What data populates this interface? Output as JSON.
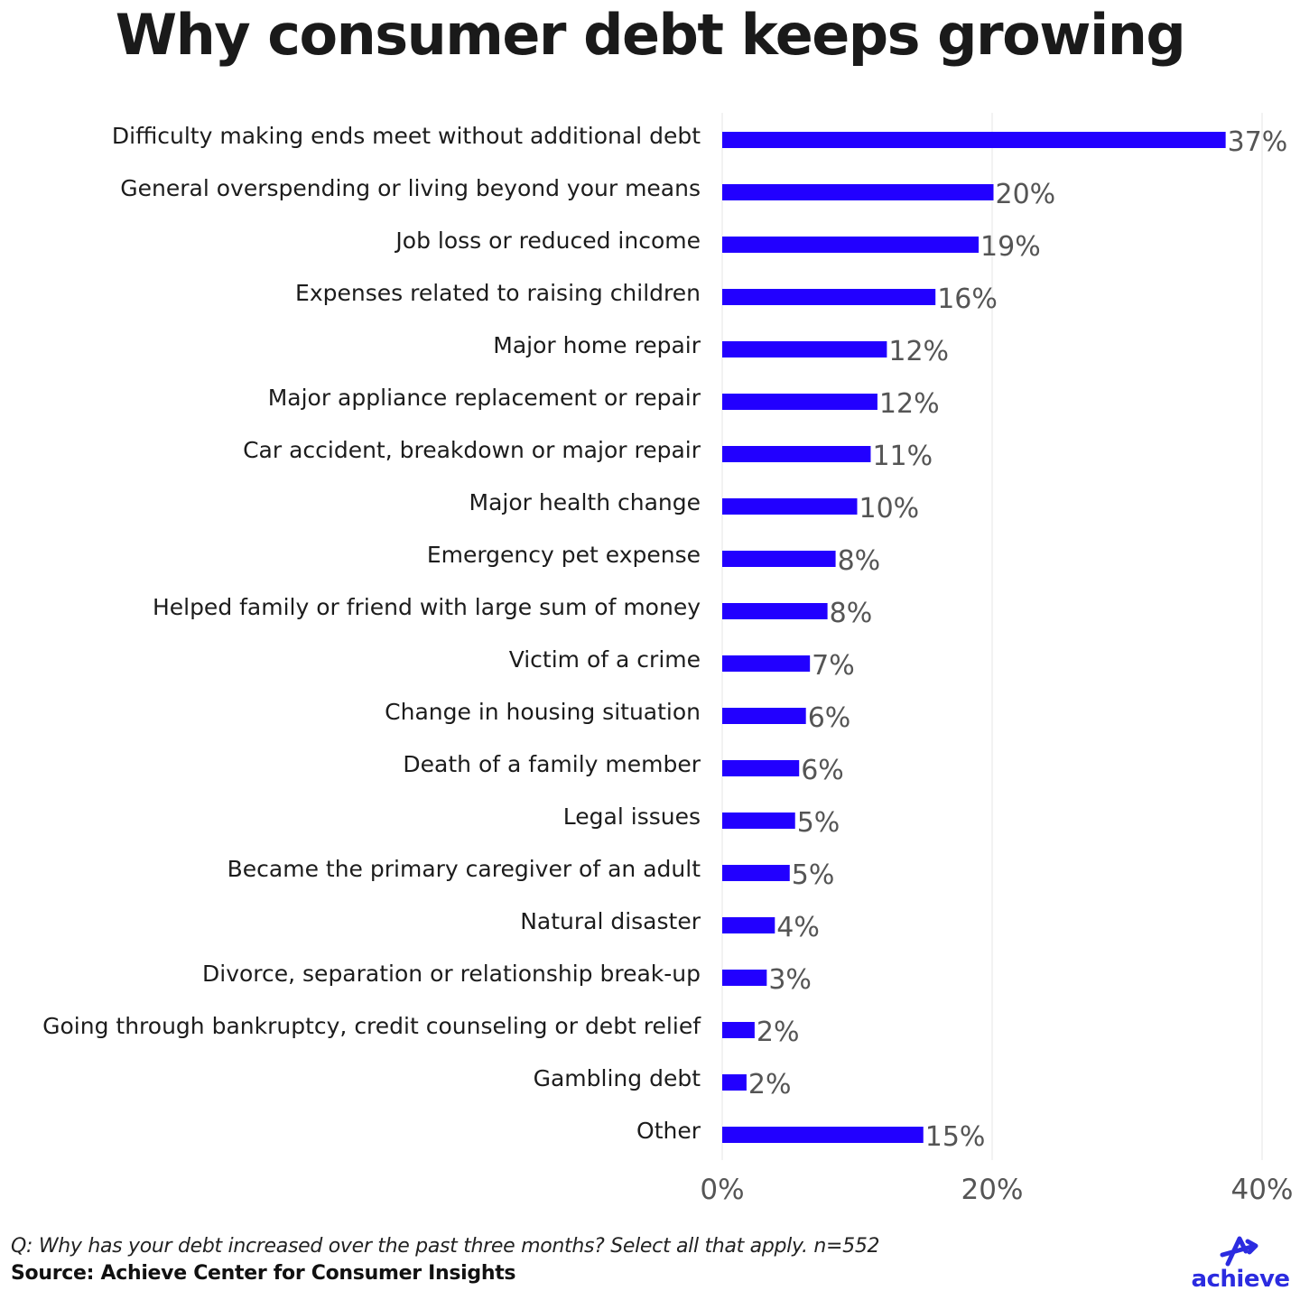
{
  "title": "Why consumer debt keeps growing",
  "chart_data": {
    "type": "bar",
    "orientation": "horizontal",
    "categories": [
      "Difficulty making ends meet without additional debt",
      "General overspending or living beyond your means",
      "Job loss or reduced income",
      "Expenses related to raising children",
      "Major home repair",
      "Major appliance replacement or repair",
      "Car accident, breakdown or major repair",
      "Major health change",
      "Emergency pet expense",
      "Helped family or friend with large sum of money",
      "Victim of a crime",
      "Change in housing situation",
      "Death of a family member",
      "Legal issues",
      "Became the primary caregiver of an adult",
      "Natural disaster",
      "Divorce, separation or relationship break-up",
      "Going through bankruptcy, credit counseling or debt relief",
      "Gambling debt",
      "Other"
    ],
    "values": [
      37.3,
      20.1,
      19.0,
      15.8,
      12.2,
      11.5,
      11.0,
      10.0,
      8.4,
      7.8,
      6.5,
      6.2,
      5.7,
      5.4,
      5.0,
      3.9,
      3.3,
      2.4,
      1.8,
      14.9
    ],
    "value_labels": [
      "37%",
      "20%",
      "19%",
      "16%",
      "12%",
      "12%",
      "11%",
      "10%",
      "8%",
      "8%",
      "7%",
      "6%",
      "6%",
      "5%",
      "5%",
      "4%",
      "3%",
      "2%",
      "2%",
      "15%"
    ],
    "xlim": [
      0,
      40
    ],
    "xticks": [
      0,
      20,
      40
    ],
    "xtick_labels": [
      "0%",
      "20%",
      "40%"
    ],
    "grid": true,
    "bar_color": "#2200ff",
    "grid_color": "#e6e6e6",
    "tick_label_color": "#555555",
    "value_label_color": "#555555"
  },
  "footer": {
    "question": "Q: Why has your debt increased over the past three months? Select all that apply. n=552",
    "source": "Source: Achieve Center for Consumer Insights"
  },
  "logo": {
    "wordmark": "achieve",
    "icon": "achieve-arrow-icon",
    "color": "#2b2be0"
  }
}
